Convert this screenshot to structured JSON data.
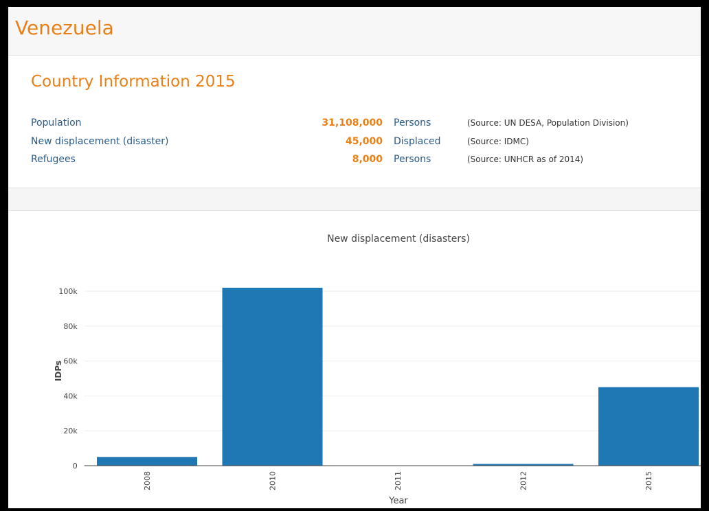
{
  "header": {
    "title": "Venezuela"
  },
  "info": {
    "title": "Country Information 2015",
    "rows": [
      {
        "label": "Population",
        "value": "31,108,000",
        "unit": "Persons",
        "source": "(Source: UN DESA, Population Division)"
      },
      {
        "label": "New displacement (disaster)",
        "value": "45,000",
        "unit": "Displaced",
        "source": "(Source: IDMC)"
      },
      {
        "label": "Refugees",
        "value": "8,000",
        "unit": "Persons",
        "source": "(Source: UNHCR as of 2014)"
      }
    ]
  },
  "chart_data": {
    "type": "bar",
    "title": "New displacement (disasters)",
    "x_label": "Year",
    "y_label": "IDPs",
    "categories": [
      "2008",
      "2010",
      "2011",
      "2012",
      "2015"
    ],
    "values": [
      5000,
      102000,
      0,
      1000,
      45000
    ],
    "color": "#1f77b4",
    "ylim": [
      0,
      110000
    ],
    "yticks": [
      0,
      {
        "value": 20000,
        "label": "20k"
      },
      {
        "value": 40000,
        "label": "40k"
      },
      {
        "value": 60000,
        "label": "60k"
      },
      {
        "value": 80000,
        "label": "80k"
      },
      {
        "value": 100000,
        "label": "100k"
      }
    ],
    "grid": true
  }
}
